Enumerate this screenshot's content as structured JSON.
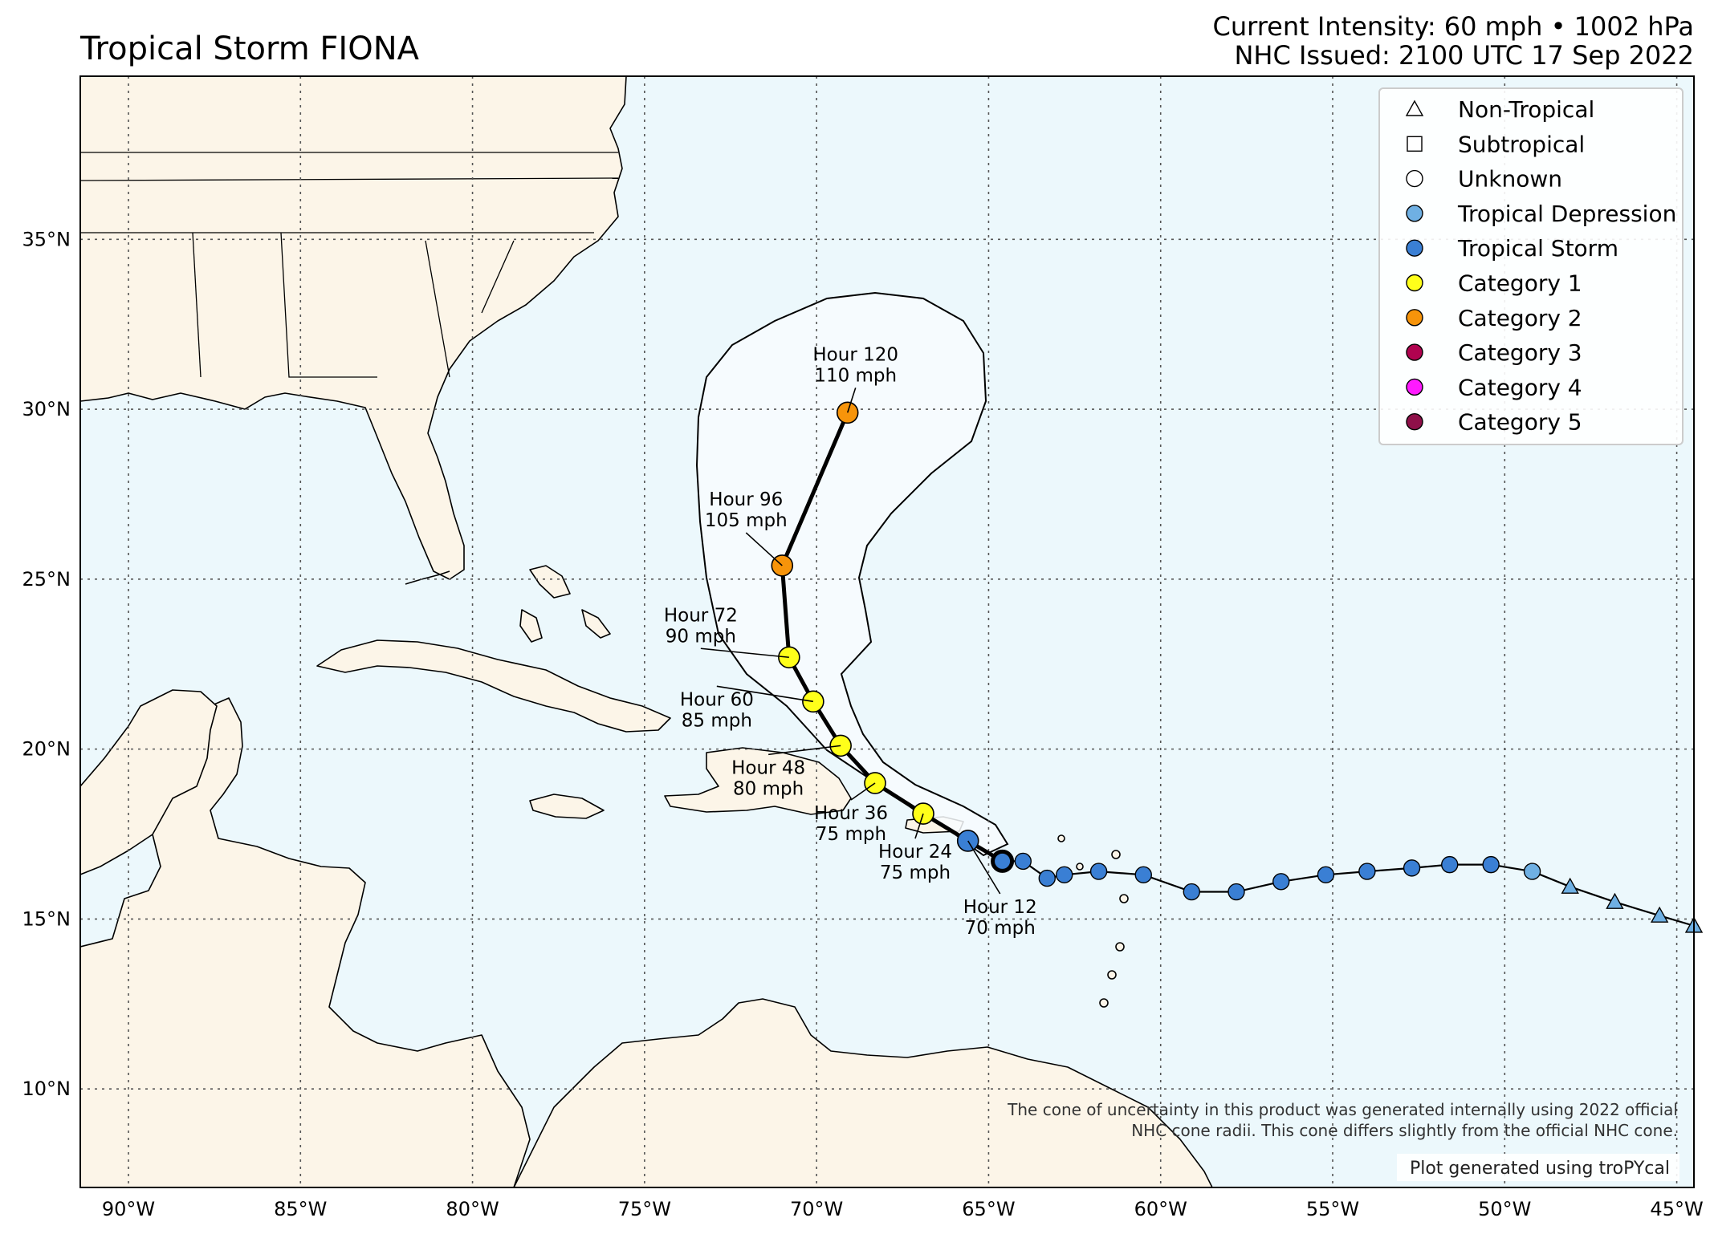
{
  "header": {
    "title": "Tropical Storm FIONA",
    "intensity": "Current Intensity: 60 mph • 1002 hPa",
    "issued": "NHC Issued: 2100 UTC 17 Sep 2022"
  },
  "map": {
    "lon_range": [
      -91.4,
      -44.5
    ],
    "lat_range": [
      7.1,
      39.8
    ],
    "ocean_color": "#ecf8fc",
    "land_color": "#fcf5e8",
    "lon_ticks": [
      {
        "v": -90,
        "t": "90°W"
      },
      {
        "v": -85,
        "t": "85°W"
      },
      {
        "v": -80,
        "t": "80°W"
      },
      {
        "v": -75,
        "t": "75°W"
      },
      {
        "v": -70,
        "t": "70°W"
      },
      {
        "v": -65,
        "t": "65°W"
      },
      {
        "v": -60,
        "t": "60°W"
      },
      {
        "v": -55,
        "t": "55°W"
      },
      {
        "v": -50,
        "t": "50°W"
      },
      {
        "v": -45,
        "t": "45°W"
      }
    ],
    "lat_ticks": [
      {
        "v": 35,
        "t": "35°N"
      },
      {
        "v": 30,
        "t": "30°N"
      },
      {
        "v": 25,
        "t": "25°N"
      },
      {
        "v": 20,
        "t": "20°N"
      },
      {
        "v": 15,
        "t": "15°N"
      },
      {
        "v": 10,
        "t": "10°N"
      }
    ]
  },
  "legend": {
    "items": [
      {
        "label": "Non-Tropical",
        "marker": "triangle",
        "color": "#ffffff"
      },
      {
        "label": "Subtropical",
        "marker": "square",
        "color": "#ffffff"
      },
      {
        "label": "Unknown",
        "marker": "circle",
        "color": "#ffffff"
      },
      {
        "label": "Tropical Depression",
        "marker": "circle",
        "color": "#6fb0e3"
      },
      {
        "label": "Tropical Storm",
        "marker": "circle",
        "color": "#3a7fd4"
      },
      {
        "label": "Category 1",
        "marker": "circle",
        "color": "#ffff1a"
      },
      {
        "label": "Category 2",
        "marker": "circle",
        "color": "#f7940a"
      },
      {
        "label": "Category 3",
        "marker": "circle",
        "color": "#b0034f"
      },
      {
        "label": "Category 4",
        "marker": "circle",
        "color": "#ff1aff"
      },
      {
        "label": "Category 5",
        "marker": "circle",
        "color": "#8f1049"
      }
    ]
  },
  "past_track": [
    {
      "lon": -44.5,
      "lat": 14.8,
      "type": "non-tropical"
    },
    {
      "lon": -45.5,
      "lat": 15.1,
      "type": "non-tropical"
    },
    {
      "lon": -46.8,
      "lat": 15.5,
      "type": "non-tropical"
    },
    {
      "lon": -48.1,
      "lat": 15.95,
      "type": "non-tropical"
    },
    {
      "lon": -49.2,
      "lat": 16.4,
      "type": "tropical-depression"
    },
    {
      "lon": -50.4,
      "lat": 16.6,
      "type": "tropical-storm"
    },
    {
      "lon": -51.6,
      "lat": 16.6,
      "type": "tropical-storm"
    },
    {
      "lon": -52.7,
      "lat": 16.5,
      "type": "tropical-storm"
    },
    {
      "lon": -54.0,
      "lat": 16.4,
      "type": "tropical-storm"
    },
    {
      "lon": -55.2,
      "lat": 16.3,
      "type": "tropical-storm"
    },
    {
      "lon": -56.5,
      "lat": 16.1,
      "type": "tropical-storm"
    },
    {
      "lon": -57.8,
      "lat": 15.8,
      "type": "tropical-storm"
    },
    {
      "lon": -59.1,
      "lat": 15.8,
      "type": "tropical-storm"
    },
    {
      "lon": -60.5,
      "lat": 16.3,
      "type": "tropical-storm"
    },
    {
      "lon": -61.8,
      "lat": 16.4,
      "type": "tropical-storm"
    },
    {
      "lon": -62.8,
      "lat": 16.3,
      "type": "tropical-storm"
    },
    {
      "lon": -63.3,
      "lat": 16.2,
      "type": "tropical-storm"
    },
    {
      "lon": -64.0,
      "lat": 16.7,
      "type": "tropical-storm"
    }
  ],
  "current_position": {
    "lon": -64.6,
    "lat": 16.7
  },
  "forecast": [
    {
      "hour": "Hour 12",
      "wind": "70 mph",
      "lon": -65.6,
      "lat": 17.3,
      "category": "Tropical Storm"
    },
    {
      "hour": "Hour 24",
      "wind": "75 mph",
      "lon": -66.9,
      "lat": 18.1,
      "category": "Category 1"
    },
    {
      "hour": "Hour 36",
      "wind": "75 mph",
      "lon": -68.3,
      "lat": 19.0,
      "category": "Category 1"
    },
    {
      "hour": "Hour 48",
      "wind": "80 mph",
      "lon": -69.3,
      "lat": 20.1,
      "category": "Category 1"
    },
    {
      "hour": "Hour 60",
      "wind": "85 mph",
      "lon": -70.1,
      "lat": 21.4,
      "category": "Category 1"
    },
    {
      "hour": "Hour 72",
      "wind": "90 mph",
      "lon": -70.8,
      "lat": 22.7,
      "category": "Category 1"
    },
    {
      "hour": "Hour 96",
      "wind": "105 mph",
      "lon": -71.0,
      "lat": 25.4,
      "category": "Category 2"
    },
    {
      "hour": "Hour 120",
      "wind": "110 mph",
      "lon": -69.1,
      "lat": 29.9,
      "category": "Category 2"
    }
  ],
  "notes": {
    "cone_line1": "The cone of uncertainty in this product was generated internally using 2022 official",
    "cone_line2": "NHC cone radii. This cone differs slightly from the official NHC cone.",
    "credit": "Plot generated using troPYcal"
  }
}
